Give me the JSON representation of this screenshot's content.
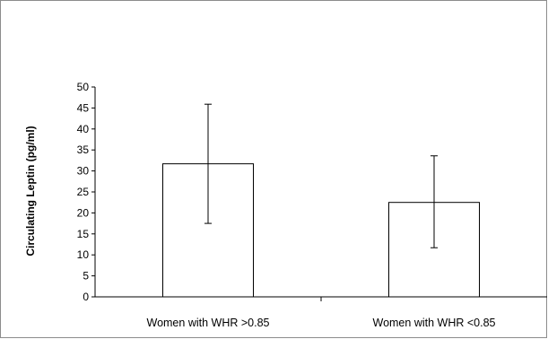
{
  "chart_data": {
    "type": "bar",
    "title": "",
    "xlabel": "",
    "ylabel": "Circulating  Leptin  (pg/ml)",
    "categories": [
      "Women with WHR >0.85",
      "Women with WHR <0.85"
    ],
    "values": [
      31.7,
      22.5
    ],
    "error_low": [
      17.5,
      11.7
    ],
    "error_high": [
      45.9,
      33.6
    ],
    "ylim": [
      0,
      50
    ],
    "yticks": [
      "0",
      "5",
      "10",
      "15",
      "20",
      "25",
      "30",
      "35",
      "40",
      "45",
      "50"
    ],
    "grid": false,
    "legend": "none",
    "colors": {
      "bar_fill": "#ffffff",
      "bar_stroke": "#000000",
      "frame": "#8c8c8c"
    }
  }
}
